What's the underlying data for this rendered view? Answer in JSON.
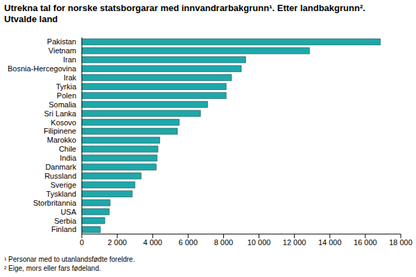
{
  "chart_data": {
    "type": "bar",
    "orientation": "horizontal",
    "title": "Utrekna tal for norske statsborgarar med innvandrarbakgrunn¹. Etter landbakgrunn². Utvalde land",
    "footnotes": [
      "¹ Personar med to utanlandsfødte foreldre.",
      "² Eige, mors eller fars fødeland."
    ],
    "categories": [
      "Pakistan",
      "Vietnam",
      "Iran",
      "Bosnia-Hercegovina",
      "Irak",
      "Tyrkia",
      "Polen",
      "Somalia",
      "Sri Lanka",
      "Kosovo",
      "Filipinene",
      "Marokko",
      "Chile",
      "India",
      "Danmark",
      "Russland",
      "Sverige",
      "Tyskland",
      "Storbritannia",
      "USA",
      "Serbia",
      "Finland"
    ],
    "values": [
      16850,
      12850,
      9250,
      9000,
      8450,
      8150,
      8150,
      7100,
      6700,
      5500,
      5400,
      4400,
      4300,
      4250,
      4200,
      3350,
      3000,
      2850,
      1600,
      1550,
      1300,
      1050
    ],
    "color": "#1fa7a9",
    "xlim": [
      0,
      18000
    ],
    "xticks": [
      0,
      {
        "value": 2000,
        "label": "2 000"
      },
      {
        "value": 4000,
        "label": "4 000"
      },
      {
        "value": 6000,
        "label": "6 000"
      },
      {
        "value": 8000,
        "label": "8 000"
      },
      {
        "value": 10000,
        "label": "10 000"
      },
      {
        "value": 12000,
        "label": "12 000"
      },
      {
        "value": 14000,
        "label": "14 000"
      },
      {
        "value": 16000,
        "label": "16 000"
      },
      {
        "value": 18000,
        "label": "18 000"
      }
    ],
    "grid": false
  }
}
